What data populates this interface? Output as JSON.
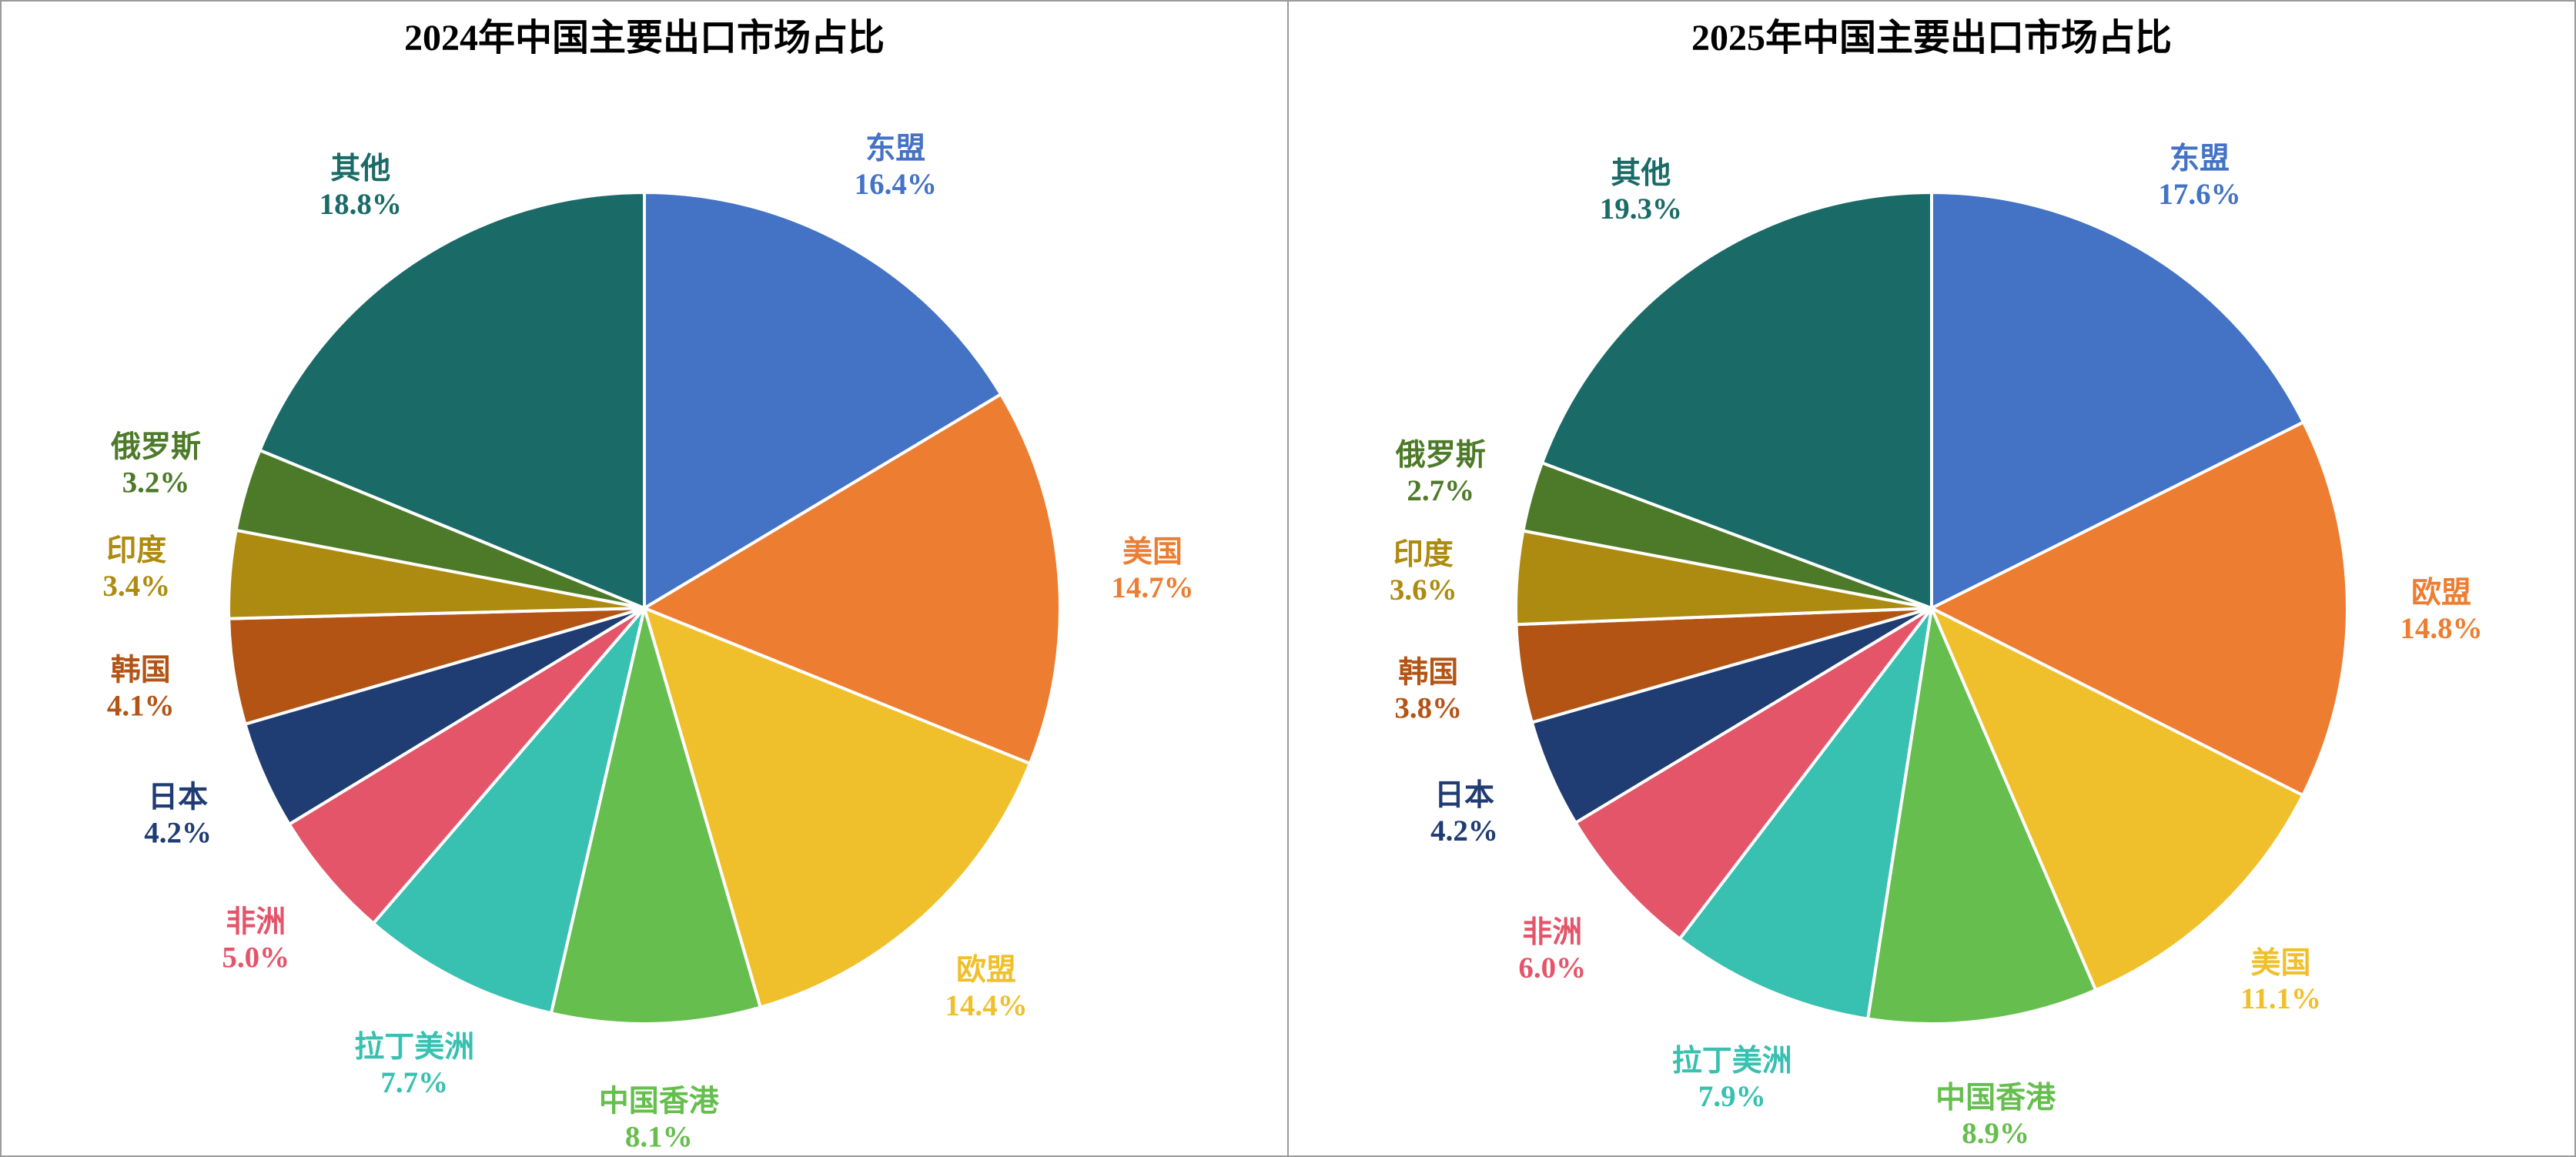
{
  "page": {
    "background_color": "#ffffff",
    "frame_border_color": "#9b9b9b"
  },
  "chart_data": [
    {
      "type": "pie",
      "title": "2024年中国主要出口市场占比",
      "start_angle": "top",
      "direction": "clockwise",
      "legend": "none",
      "label_position": "outside",
      "slices": [
        {
          "label": "东盟",
          "value": 16.4,
          "pct_label": "16.4%",
          "color": "#4472C4"
        },
        {
          "label": "美国",
          "value": 14.7,
          "pct_label": "14.7%",
          "color": "#ED7D31"
        },
        {
          "label": "欧盟",
          "value": 14.4,
          "pct_label": "14.4%",
          "color": "#F0C02C"
        },
        {
          "label": "中国香港",
          "value": 8.1,
          "pct_label": "8.1%",
          "color": "#66BE4E"
        },
        {
          "label": "拉丁美洲",
          "value": 7.7,
          "pct_label": "7.7%",
          "color": "#38C0B0"
        },
        {
          "label": "非洲",
          "value": 5.0,
          "pct_label": "5.0%",
          "color": "#E4556A"
        },
        {
          "label": "日本",
          "value": 4.2,
          "pct_label": "4.2%",
          "color": "#1F3C73"
        },
        {
          "label": "韩国",
          "value": 4.1,
          "pct_label": "4.1%",
          "color": "#B35415"
        },
        {
          "label": "印度",
          "value": 3.4,
          "pct_label": "3.4%",
          "color": "#AD8B10"
        },
        {
          "label": "俄罗斯",
          "value": 3.2,
          "pct_label": "3.2%",
          "color": "#4D7A28"
        },
        {
          "label": "其他",
          "value": 18.8,
          "pct_label": "18.8%",
          "color": "#1A6B68"
        }
      ]
    },
    {
      "type": "pie",
      "title": "2025年中国主要出口市场占比",
      "start_angle": "top",
      "direction": "clockwise",
      "legend": "none",
      "label_position": "outside",
      "slices": [
        {
          "label": "东盟",
          "value": 17.6,
          "pct_label": "17.6%",
          "color": "#4472C4"
        },
        {
          "label": "欧盟",
          "value": 14.8,
          "pct_label": "14.8%",
          "color": "#ED7D31"
        },
        {
          "label": "美国",
          "value": 11.1,
          "pct_label": "11.1%",
          "color": "#F0C02C"
        },
        {
          "label": "中国香港",
          "value": 8.9,
          "pct_label": "8.9%",
          "color": "#66BE4E"
        },
        {
          "label": "拉丁美洲",
          "value": 7.9,
          "pct_label": "7.9%",
          "color": "#38C0B0"
        },
        {
          "label": "非洲",
          "value": 6.0,
          "pct_label": "6.0%",
          "color": "#E4556A"
        },
        {
          "label": "日本",
          "value": 4.2,
          "pct_label": "4.2%",
          "color": "#1F3C73"
        },
        {
          "label": "韩国",
          "value": 3.8,
          "pct_label": "3.8%",
          "color": "#B35415"
        },
        {
          "label": "印度",
          "value": 3.6,
          "pct_label": "3.6%",
          "color": "#AD8B10"
        },
        {
          "label": "俄罗斯",
          "value": 2.7,
          "pct_label": "2.7%",
          "color": "#4D7A28"
        },
        {
          "label": "其他",
          "value": 19.3,
          "pct_label": "19.3%",
          "color": "#1A6B68"
        }
      ]
    }
  ]
}
